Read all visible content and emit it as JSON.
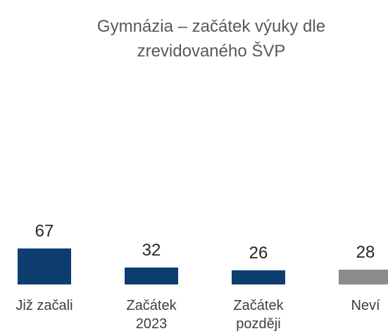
{
  "chart_data": {
    "type": "bar",
    "title": "Gymnázia – začátek výuky dle zrevidovaného ŠVP",
    "categories": [
      "Již začali",
      "Začátek 2023",
      "Začátek později",
      "Neví"
    ],
    "values": [
      67,
      32,
      26,
      28
    ],
    "colors": [
      "#0e3d70",
      "#0e3d70",
      "#0e3d70",
      "#8c8c8c"
    ]
  }
}
